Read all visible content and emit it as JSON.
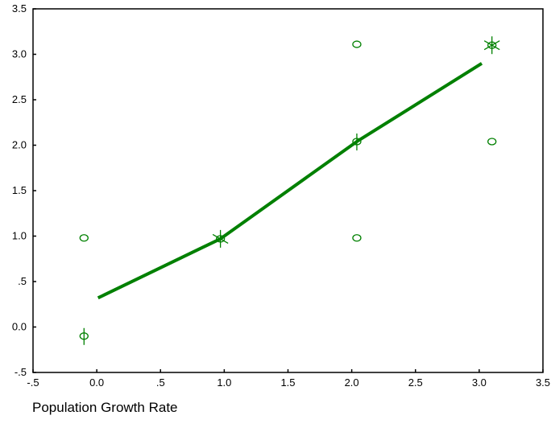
{
  "chart_data": {
    "type": "scatter",
    "title": "",
    "xlabel": "Population Growth Rate",
    "ylabel": "",
    "xlim": [
      -0.5,
      3.5
    ],
    "ylim": [
      -0.5,
      3.5
    ],
    "grid": false,
    "x_ticks": [
      -0.5,
      0.0,
      0.5,
      1.0,
      1.5,
      2.0,
      2.5,
      3.0,
      3.5
    ],
    "x_tick_labels": [
      "-.5",
      "0.0",
      ".5",
      "1.0",
      "1.5",
      "2.0",
      "2.5",
      "3.0",
      "3.5"
    ],
    "y_ticks": [
      -0.5,
      0.0,
      0.5,
      1.0,
      1.5,
      2.0,
      2.5,
      3.0,
      3.5
    ],
    "y_tick_labels": [
      "-.5",
      "0.0",
      ".5",
      "1.0",
      "1.5",
      "2.0",
      "2.5",
      "3.0",
      "3.5"
    ],
    "color": "#008000",
    "points": [
      {
        "x": -0.1,
        "y": 0.98,
        "marker": "circle"
      },
      {
        "x": -0.1,
        "y": -0.1,
        "marker": "circle-vbar"
      },
      {
        "x": 0.97,
        "y": 0.97,
        "marker": "circle-star"
      },
      {
        "x": 2.04,
        "y": 3.11,
        "marker": "circle"
      },
      {
        "x": 2.04,
        "y": 2.04,
        "marker": "circle-vbar"
      },
      {
        "x": 2.04,
        "y": 0.98,
        "marker": "circle"
      },
      {
        "x": 3.1,
        "y": 3.1,
        "marker": "circle-star"
      },
      {
        "x": 3.1,
        "y": 2.04,
        "marker": "circle"
      }
    ],
    "fit_line": {
      "x": [
        0.01,
        0.97,
        2.04,
        3.02
      ],
      "y": [
        0.32,
        0.97,
        2.04,
        2.9
      ]
    }
  }
}
